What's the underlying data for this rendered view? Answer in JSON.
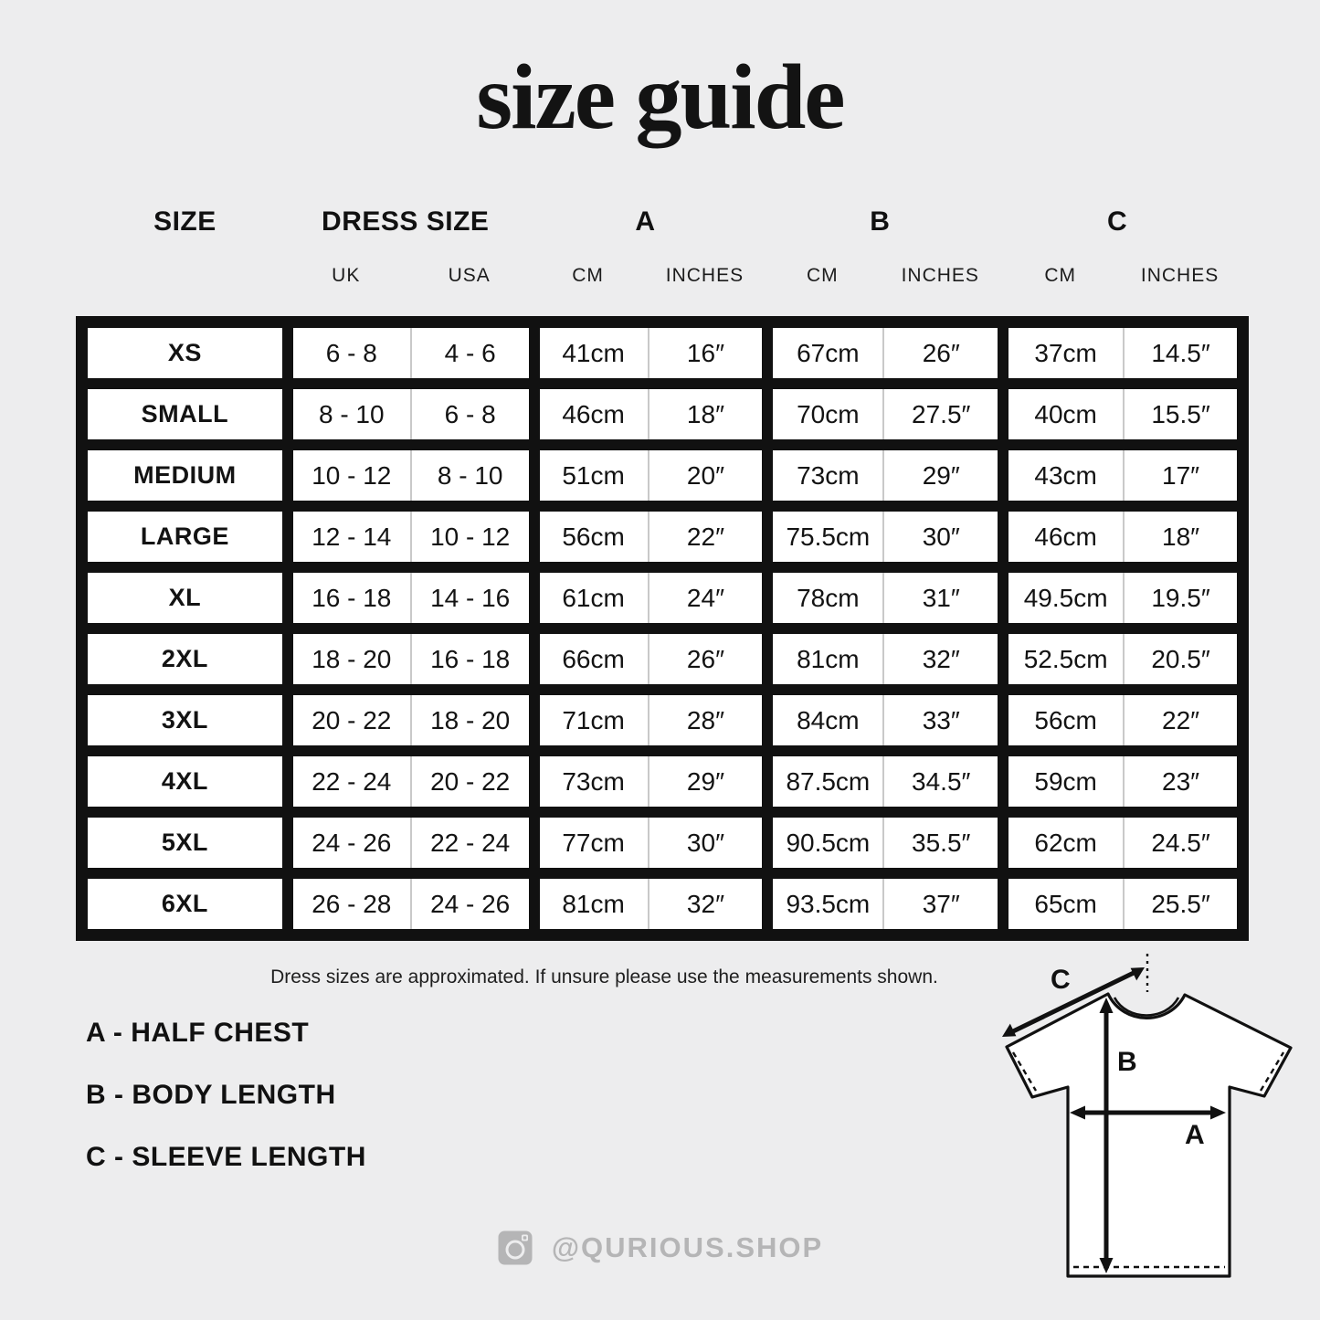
{
  "title": "size guide",
  "table": {
    "group_headers": [
      {
        "label": "SIZE"
      },
      {
        "label": "DRESS SIZE"
      },
      {
        "label": "A"
      },
      {
        "label": "B"
      },
      {
        "label": "C"
      }
    ],
    "sub_headers": [
      "UK",
      "USA",
      "CM",
      "INCHES",
      "CM",
      "INCHES",
      "CM",
      "INCHES"
    ],
    "rows": [
      {
        "size": "XS",
        "uk": "6 - 8",
        "usa": "4 - 6",
        "a_cm": "41cm",
        "a_in": "16″",
        "b_cm": "67cm",
        "b_in": "26″",
        "c_cm": "37cm",
        "c_in": "14.5″"
      },
      {
        "size": "SMALL",
        "uk": "8 - 10",
        "usa": "6 - 8",
        "a_cm": "46cm",
        "a_in": "18″",
        "b_cm": "70cm",
        "b_in": "27.5″",
        "c_cm": "40cm",
        "c_in": "15.5″"
      },
      {
        "size": "MEDIUM",
        "uk": "10 - 12",
        "usa": "8 - 10",
        "a_cm": "51cm",
        "a_in": "20″",
        "b_cm": "73cm",
        "b_in": "29″",
        "c_cm": "43cm",
        "c_in": "17″"
      },
      {
        "size": "LARGE",
        "uk": "12 - 14",
        "usa": "10 - 12",
        "a_cm": "56cm",
        "a_in": "22″",
        "b_cm": "75.5cm",
        "b_in": "30″",
        "c_cm": "46cm",
        "c_in": "18″"
      },
      {
        "size": "XL",
        "uk": "16 - 18",
        "usa": "14 - 16",
        "a_cm": "61cm",
        "a_in": "24″",
        "b_cm": "78cm",
        "b_in": "31″",
        "c_cm": "49.5cm",
        "c_in": "19.5″"
      },
      {
        "size": "2XL",
        "uk": "18 - 20",
        "usa": "16 - 18",
        "a_cm": "66cm",
        "a_in": "26″",
        "b_cm": "81cm",
        "b_in": "32″",
        "c_cm": "52.5cm",
        "c_in": "20.5″"
      },
      {
        "size": "3XL",
        "uk": "20 - 22",
        "usa": "18 - 20",
        "a_cm": "71cm",
        "a_in": "28″",
        "b_cm": "84cm",
        "b_in": "33″",
        "c_cm": "56cm",
        "c_in": "22″"
      },
      {
        "size": "4XL",
        "uk": "22 - 24",
        "usa": "20 - 22",
        "a_cm": "73cm",
        "a_in": "29″",
        "b_cm": "87.5cm",
        "b_in": "34.5″",
        "c_cm": "59cm",
        "c_in": "23″"
      },
      {
        "size": "5XL",
        "uk": "24 - 26",
        "usa": "22 - 24",
        "a_cm": "77cm",
        "a_in": "30″",
        "b_cm": "90.5cm",
        "b_in": "35.5″",
        "c_cm": "62cm",
        "c_in": "24.5″"
      },
      {
        "size": "6XL",
        "uk": "26 - 28",
        "usa": "24 - 26",
        "a_cm": "81cm",
        "a_in": "32″",
        "b_cm": "93.5cm",
        "b_in": "37″",
        "c_cm": "65cm",
        "c_in": "25.5″"
      }
    ]
  },
  "chart_data": {
    "type": "table",
    "title": "size guide",
    "columns": [
      "SIZE",
      "DRESS SIZE UK",
      "DRESS SIZE USA",
      "A CM",
      "A INCHES",
      "B CM",
      "B INCHES",
      "C CM",
      "C INCHES"
    ],
    "rows": [
      [
        "XS",
        "6 - 8",
        "4 - 6",
        "41cm",
        "16″",
        "67cm",
        "26″",
        "37cm",
        "14.5″"
      ],
      [
        "SMALL",
        "8 - 10",
        "6 - 8",
        "46cm",
        "18″",
        "70cm",
        "27.5″",
        "40cm",
        "15.5″"
      ],
      [
        "MEDIUM",
        "10 - 12",
        "8 - 10",
        "51cm",
        "20″",
        "73cm",
        "29″",
        "43cm",
        "17″"
      ],
      [
        "LARGE",
        "12 - 14",
        "10 - 12",
        "56cm",
        "22″",
        "75.5cm",
        "30″",
        "46cm",
        "18″"
      ],
      [
        "XL",
        "16 - 18",
        "14 - 16",
        "61cm",
        "24″",
        "78cm",
        "31″",
        "49.5cm",
        "19.5″"
      ],
      [
        "2XL",
        "18 - 20",
        "16 - 18",
        "66cm",
        "26″",
        "81cm",
        "32″",
        "52.5cm",
        "20.5″"
      ],
      [
        "3XL",
        "20 - 22",
        "18 - 20",
        "71cm",
        "28″",
        "84cm",
        "33″",
        "56cm",
        "22″"
      ],
      [
        "4XL",
        "22 - 24",
        "20 - 22",
        "73cm",
        "29″",
        "87.5cm",
        "34.5″",
        "59cm",
        "23″"
      ],
      [
        "5XL",
        "24 - 26",
        "22 - 24",
        "77cm",
        "30″",
        "90.5cm",
        "35.5″",
        "62cm",
        "24.5″"
      ],
      [
        "6XL",
        "26 - 28",
        "24 - 26",
        "81cm",
        "32″",
        "93.5cm",
        "37″",
        "65cm",
        "25.5″"
      ]
    ]
  },
  "note": "Dress sizes are approximated. If unsure please use the measurements shown.",
  "legend": [
    {
      "label": "A - HALF CHEST"
    },
    {
      "label": "B - BODY LENGTH"
    },
    {
      "label": "C - SLEEVE LENGTH"
    }
  ],
  "social": {
    "handle": "@QURIOUS.SHOP",
    "icon": "instagram-icon"
  },
  "diagram": {
    "labels": [
      "A",
      "B",
      "C"
    ]
  },
  "colors": {
    "background": "#ededee",
    "table_border": "#111111",
    "cell_background": "#ffffff",
    "thin_divider": "#c9c9c9",
    "text": "#131313",
    "muted_gray": "#b5b5b6"
  }
}
